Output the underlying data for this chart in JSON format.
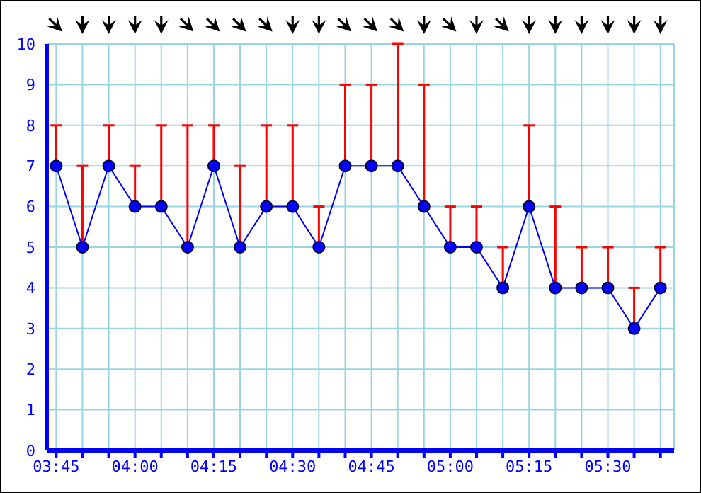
{
  "chart_data": {
    "type": "line",
    "x": [
      3.75,
      3.8333,
      3.9167,
      4,
      4.0833,
      4.1667,
      4.25,
      4.3333,
      4.4167,
      4.5,
      4.5833,
      4.6667,
      4.75,
      4.8333,
      4.9167,
      5,
      5.0833,
      5.1667,
      5.25,
      5.3333,
      5.4167,
      5.5,
      5.5833,
      5.6667
    ],
    "series": [
      {
        "color": "#0000ff",
        "values": [
          7,
          5,
          7,
          6,
          6,
          5,
          7,
          5,
          6,
          6,
          5,
          7,
          7,
          7,
          6,
          5,
          5,
          4,
          6,
          4,
          4,
          4,
          3,
          4
        ],
        "errors": [
          [
            7,
            8
          ],
          [
            5,
            7
          ],
          [
            7,
            8
          ],
          [
            6,
            7
          ],
          [
            6,
            8
          ],
          [
            5,
            8
          ],
          [
            7,
            8
          ],
          [
            5,
            7
          ],
          [
            6,
            8
          ],
          [
            6,
            8
          ],
          [
            5,
            6
          ],
          [
            7,
            9
          ],
          [
            7,
            9
          ],
          [
            7,
            10
          ],
          [
            6,
            9
          ],
          [
            5,
            6
          ],
          [
            5,
            6
          ],
          [
            4,
            5
          ],
          [
            6,
            8
          ],
          [
            4,
            6
          ],
          [
            4,
            5
          ],
          [
            4,
            5
          ],
          [
            3,
            4
          ],
          [
            4,
            5
          ]
        ]
      }
    ],
    "xlim": [
      3.72,
      5.71
    ],
    "xticks": [
      {
        "value": 3.75,
        "label": "03:45"
      },
      {
        "value": 3.8333,
        "label": null
      },
      {
        "value": 3.9167,
        "label": null
      },
      {
        "value": 4,
        "label": "04:00"
      },
      {
        "value": 4.0833,
        "label": null
      },
      {
        "value": 4.1667,
        "label": null
      },
      {
        "value": 4.25,
        "label": "04:15"
      },
      {
        "value": 4.3333,
        "label": null
      },
      {
        "value": 4.4167,
        "label": null
      },
      {
        "value": 4.5,
        "label": "04:30"
      },
      {
        "value": 4.5833,
        "label": null
      },
      {
        "value": 4.6667,
        "label": null
      },
      {
        "value": 4.75,
        "label": "04:45"
      },
      {
        "value": 4.8333,
        "label": null
      },
      {
        "value": 4.9167,
        "label": null
      },
      {
        "value": 5,
        "label": "05:00"
      },
      {
        "value": 5.0833,
        "label": null
      },
      {
        "value": 5.1667,
        "label": null
      },
      {
        "value": 5.25,
        "label": "05:15"
      },
      {
        "value": 5.3333,
        "label": null
      },
      {
        "value": 5.4167,
        "label": null
      },
      {
        "value": 5.5,
        "label": "05:30"
      },
      {
        "value": 5.5833,
        "label": null
      },
      {
        "value": 5.6667,
        "label": null
      }
    ],
    "ylim": [
      0,
      10
    ],
    "yticks": [
      0,
      1,
      2,
      3,
      4,
      5,
      6,
      7,
      8,
      9,
      10
    ],
    "grid": true,
    "marker": "circle",
    "line_style": "solid",
    "legend": false
  }
}
